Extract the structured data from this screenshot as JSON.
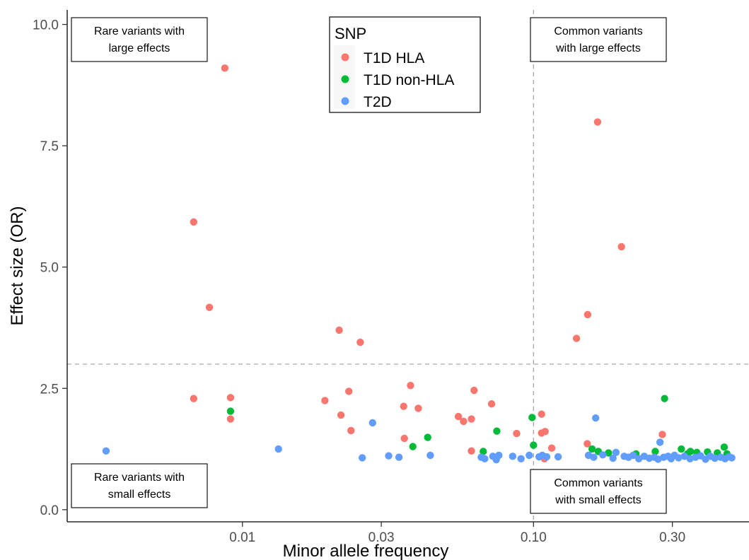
{
  "chart_data": {
    "type": "scatter",
    "xlabel": "Minor allele frequency",
    "ylabel": "Effect size (OR)",
    "x_scale": "log",
    "xlim": [
      0.0025,
      0.55
    ],
    "ylim": [
      -0.25,
      10.3
    ],
    "x_ticks": [
      {
        "value": 0.01,
        "label": "0.01"
      },
      {
        "value": 0.03,
        "label": "0.03"
      },
      {
        "value": 0.1,
        "label": "0.10"
      },
      {
        "value": 0.3,
        "label": "0.30"
      }
    ],
    "y_ticks": [
      {
        "value": 0.0,
        "label": "0.0"
      },
      {
        "value": 2.5,
        "label": "2.5"
      },
      {
        "value": 5.0,
        "label": "5.0"
      },
      {
        "value": 7.5,
        "label": "7.5"
      },
      {
        "value": 10.0,
        "label": "10.0"
      }
    ],
    "reference_lines": {
      "x": 0.1,
      "y": 3.0
    },
    "grid": false,
    "legend": {
      "title": "SNP",
      "position": "top-center"
    },
    "quadrant_labels": [
      {
        "id": "top-left",
        "lines": [
          "Rare variants with",
          "large effects"
        ]
      },
      {
        "id": "top-right",
        "lines": [
          "Common variants",
          "with large effects"
        ]
      },
      {
        "id": "bottom-left",
        "lines": [
          "Rare variants with",
          "small effects"
        ]
      },
      {
        "id": "bottom-right",
        "lines": [
          "Common variants",
          "with small effects"
        ]
      }
    ],
    "series": [
      {
        "name": "T1D HLA",
        "color": "#F8766D",
        "points": [
          [
            0.0087,
            9.1
          ],
          [
            0.0068,
            5.93
          ],
          [
            0.0068,
            2.29
          ],
          [
            0.0077,
            4.17
          ],
          [
            0.0091,
            2.31
          ],
          [
            0.0091,
            1.87
          ],
          [
            0.0192,
            2.25
          ],
          [
            0.0215,
            3.7
          ],
          [
            0.0218,
            1.95
          ],
          [
            0.0232,
            2.44
          ],
          [
            0.0236,
            1.63
          ],
          [
            0.0254,
            3.45
          ],
          [
            0.0358,
            2.13
          ],
          [
            0.036,
            1.47
          ],
          [
            0.0378,
            2.56
          ],
          [
            0.0402,
            2.09
          ],
          [
            0.0552,
            1.92
          ],
          [
            0.0575,
            1.82
          ],
          [
            0.0612,
            1.87
          ],
          [
            0.0625,
            2.46
          ],
          [
            0.0612,
            1.21
          ],
          [
            0.0718,
            2.18
          ],
          [
            0.0875,
            1.57
          ],
          [
            0.1066,
            1.97
          ],
          [
            0.1066,
            1.58
          ],
          [
            0.1096,
            1.61
          ],
          [
            0.109,
            1.05
          ],
          [
            0.1155,
            1.27
          ],
          [
            0.1405,
            3.53
          ],
          [
            0.1535,
            4.02
          ],
          [
            0.153,
            1.36
          ],
          [
            0.166,
            7.99
          ],
          [
            0.2005,
            5.42
          ],
          [
            0.277,
            1.55
          ]
        ]
      },
      {
        "name": "T1D non-HLA",
        "color": "#00BA38",
        "points": [
          [
            0.0091,
            2.03
          ],
          [
            0.0385,
            1.3
          ],
          [
            0.0433,
            1.49
          ],
          [
            0.0672,
            1.2
          ],
          [
            0.0748,
            1.62
          ],
          [
            0.0989,
            1.9
          ],
          [
            0.1,
            1.33
          ],
          [
            0.159,
            1.25
          ],
          [
            0.167,
            1.2
          ],
          [
            0.181,
            1.17
          ],
          [
            0.225,
            1.15
          ],
          [
            0.262,
            1.2
          ],
          [
            0.282,
            2.29
          ],
          [
            0.322,
            1.25
          ],
          [
            0.338,
            1.15
          ],
          [
            0.346,
            1.2
          ],
          [
            0.364,
            1.18
          ],
          [
            0.396,
            1.19
          ],
          [
            0.428,
            1.17
          ],
          [
            0.452,
            1.29
          ],
          [
            0.462,
            1.15
          ]
        ]
      },
      {
        "name": "T2D",
        "color": "#619CFF",
        "points": [
          [
            0.0034,
            1.21
          ],
          [
            0.0133,
            1.25
          ],
          [
            0.0258,
            1.07
          ],
          [
            0.028,
            1.79
          ],
          [
            0.0318,
            1.11
          ],
          [
            0.0345,
            1.08
          ],
          [
            0.0442,
            1.12
          ],
          [
            0.0661,
            1.08
          ],
          [
            0.068,
            1.05
          ],
          [
            0.0725,
            1.1
          ],
          [
            0.0745,
            1.03
          ],
          [
            0.076,
            1.12
          ],
          [
            0.0848,
            1.1
          ],
          [
            0.0906,
            1.05
          ],
          [
            0.0967,
            1.12
          ],
          [
            0.1045,
            1.09
          ],
          [
            0.1072,
            1.12
          ],
          [
            0.111,
            1.09
          ],
          [
            0.1215,
            1.09
          ],
          [
            0.1545,
            1.12
          ],
          [
            0.161,
            1.08
          ],
          [
            0.1635,
            1.89
          ],
          [
            0.173,
            1.13
          ],
          [
            0.1875,
            1.06
          ],
          [
            0.192,
            1.18
          ],
          [
            0.205,
            1.1
          ],
          [
            0.212,
            1.08
          ],
          [
            0.22,
            1.12
          ],
          [
            0.23,
            1.05
          ],
          [
            0.24,
            1.1
          ],
          [
            0.25,
            1.06
          ],
          [
            0.26,
            1.08
          ],
          [
            0.268,
            1.04
          ],
          [
            0.272,
            1.39
          ],
          [
            0.28,
            1.08
          ],
          [
            0.29,
            1.1
          ],
          [
            0.297,
            1.05
          ],
          [
            0.305,
            1.12
          ],
          [
            0.315,
            1.07
          ],
          [
            0.33,
            1.1
          ],
          [
            0.345,
            1.05
          ],
          [
            0.36,
            1.08
          ],
          [
            0.375,
            1.11
          ],
          [
            0.39,
            1.04
          ],
          [
            0.405,
            1.1
          ],
          [
            0.42,
            1.06
          ],
          [
            0.44,
            1.08
          ],
          [
            0.455,
            1.05
          ],
          [
            0.47,
            1.09
          ],
          [
            0.48,
            1.07
          ]
        ]
      }
    ]
  }
}
